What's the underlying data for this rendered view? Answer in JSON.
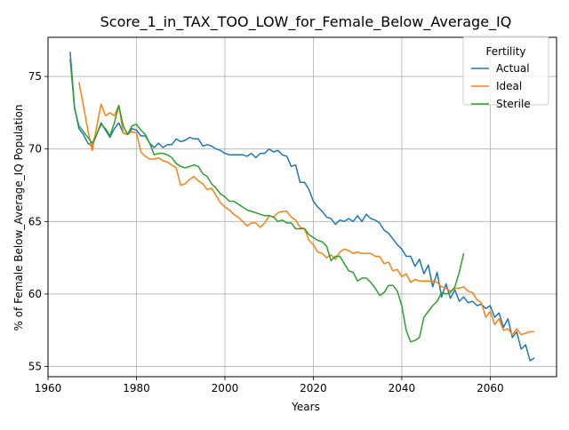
{
  "chart_data": {
    "type": "line",
    "title": "Score_1_in_TAX_TOO_LOW_for_Female_Below_Average_IQ",
    "xlabel": "Years",
    "ylabel": "% of Female Below_Average_IQ Population",
    "xlim": [
      1960,
      2075
    ],
    "ylim": [
      54.3,
      77.7
    ],
    "xticks": [
      1960,
      1980,
      2000,
      2020,
      2040,
      2060
    ],
    "yticks": [
      55,
      60,
      65,
      70,
      75
    ],
    "grid": true,
    "legend": {
      "title": "Fertility",
      "placement": "top-right"
    },
    "series": [
      {
        "name": "Actual",
        "color": "#1f77b4",
        "x": [
          1965,
          1966,
          1967,
          1968,
          1969,
          1970,
          1971,
          1972,
          1973,
          1974,
          1975,
          1976,
          1977,
          1978,
          1979,
          1980,
          1981,
          1982,
          1983,
          1984,
          1985,
          1986,
          1987,
          1988,
          1989,
          1990,
          1991,
          1992,
          1993,
          1994,
          1995,
          1996,
          1997,
          1998,
          1999,
          2000,
          2001,
          2002,
          2003,
          2004,
          2005,
          2006,
          2007,
          2008,
          2009,
          2010,
          2011,
          2012,
          2013,
          2014,
          2015,
          2016,
          2017,
          2018,
          2019,
          2020,
          2021,
          2022,
          2023,
          2024,
          2025,
          2026,
          2027,
          2028,
          2029,
          2030,
          2031,
          2032,
          2033,
          2034,
          2035,
          2036,
          2037,
          2038,
          2039,
          2040,
          2041,
          2042,
          2043,
          2044,
          2045,
          2046,
          2047,
          2048,
          2049,
          2050,
          2051,
          2052,
          2053,
          2054,
          2055,
          2056,
          2057,
          2058,
          2059,
          2060,
          2061,
          2062,
          2063,
          2064,
          2065,
          2066,
          2067,
          2068,
          2069,
          2070
        ],
        "values": [
          76.7,
          72.9,
          71.4,
          71.0,
          70.4,
          70.2,
          71.0,
          71.8,
          71.3,
          70.8,
          71.4,
          71.8,
          71.1,
          71.0,
          71.4,
          71.3,
          70.9,
          70.9,
          70.4,
          70.1,
          70.4,
          70.1,
          70.3,
          70.3,
          70.7,
          70.5,
          70.6,
          70.8,
          70.7,
          70.7,
          70.2,
          70.3,
          70.2,
          70.0,
          69.9,
          69.7,
          69.6,
          69.6,
          69.6,
          69.6,
          69.5,
          69.7,
          69.4,
          69.7,
          69.7,
          70.0,
          69.8,
          69.9,
          69.6,
          69.5,
          68.8,
          68.9,
          67.7,
          67.7,
          67.2,
          66.4,
          66.0,
          65.7,
          65.3,
          65.2,
          64.8,
          65.1,
          65.0,
          65.2,
          65.0,
          65.4,
          65.0,
          65.5,
          65.2,
          65.1,
          64.9,
          64.4,
          64.2,
          63.8,
          63.4,
          63.1,
          62.6,
          62.6,
          61.9,
          62.4,
          61.4,
          62.0,
          60.5,
          61.5,
          59.8,
          60.7,
          59.7,
          60.3,
          59.5,
          59.8,
          59.4,
          59.5,
          59.2,
          59.3,
          59.0,
          59.2,
          58.4,
          58.7,
          57.7,
          58.3,
          57.0,
          57.4,
          56.2,
          56.5,
          55.4,
          55.6
        ]
      },
      {
        "name": "Ideal",
        "color": "#ff7f0e",
        "x": [
          1967,
          1968,
          1969,
          1970,
          1971,
          1972,
          1973,
          1974,
          1975,
          1976,
          1977,
          1978,
          1979,
          1980,
          1981,
          1982,
          1983,
          1984,
          1985,
          1986,
          1987,
          1988,
          1989,
          1990,
          1991,
          1992,
          1993,
          1994,
          1995,
          1996,
          1997,
          1998,
          1999,
          2000,
          2001,
          2002,
          2003,
          2004,
          2005,
          2006,
          2007,
          2008,
          2009,
          2010,
          2011,
          2012,
          2013,
          2014,
          2015,
          2016,
          2017,
          2018,
          2019,
          2020,
          2021,
          2022,
          2023,
          2024,
          2025,
          2026,
          2027,
          2028,
          2029,
          2030,
          2031,
          2032,
          2033,
          2034,
          2035,
          2036,
          2037,
          2038,
          2039,
          2040,
          2041,
          2042,
          2043,
          2044,
          2045,
          2046,
          2047,
          2048,
          2049,
          2050,
          2051,
          2052,
          2053,
          2054,
          2055,
          2056,
          2057,
          2058,
          2059,
          2060,
          2061,
          2062,
          2063,
          2064,
          2065,
          2066,
          2067,
          2068,
          2069,
          2070
        ],
        "values": [
          74.6,
          73.0,
          71.3,
          69.9,
          71.5,
          73.1,
          72.3,
          72.5,
          72.3,
          73.0,
          71.1,
          71.0,
          71.2,
          71.1,
          69.8,
          69.5,
          69.3,
          69.3,
          69.4,
          69.2,
          69.1,
          68.9,
          68.7,
          67.5,
          67.6,
          67.9,
          68.1,
          67.8,
          67.6,
          67.2,
          67.3,
          66.8,
          66.3,
          66.0,
          65.8,
          65.5,
          65.3,
          65.0,
          64.7,
          64.9,
          64.9,
          64.6,
          64.9,
          65.4,
          65.3,
          65.6,
          65.7,
          65.7,
          65.3,
          65.1,
          64.6,
          64.5,
          63.7,
          63.4,
          62.9,
          62.8,
          62.5,
          62.7,
          62.4,
          62.9,
          63.1,
          63.0,
          62.8,
          62.9,
          62.8,
          62.8,
          62.8,
          62.6,
          62.6,
          62.1,
          62.2,
          61.6,
          61.7,
          61.2,
          61.4,
          60.8,
          61.0,
          60.9,
          60.9,
          60.9,
          60.9,
          60.8,
          60.5,
          60.4,
          60.2,
          60.4,
          60.4,
          60.5,
          60.2,
          60.1,
          59.6,
          59.4,
          58.4,
          58.8,
          57.9,
          58.3,
          57.5,
          57.6,
          57.2,
          57.6,
          57.2,
          57.3,
          57.4,
          57.4
        ]
      },
      {
        "name": "Sterile",
        "color": "#2ca02c",
        "x": [
          1965,
          1966,
          1967,
          1968,
          1969,
          1970,
          1971,
          1972,
          1973,
          1974,
          1975,
          1976,
          1977,
          1978,
          1979,
          1980,
          1981,
          1982,
          1983,
          1984,
          1985,
          1986,
          1987,
          1988,
          1989,
          1990,
          1991,
          1992,
          1993,
          1994,
          1995,
          1996,
          1997,
          1998,
          1999,
          2000,
          2001,
          2002,
          2003,
          2004,
          2005,
          2006,
          2007,
          2008,
          2009,
          2010,
          2011,
          2012,
          2013,
          2014,
          2015,
          2016,
          2017,
          2018,
          2019,
          2020,
          2021,
          2022,
          2023,
          2024,
          2025,
          2026,
          2027,
          2028,
          2029,
          2030,
          2031,
          2032,
          2033,
          2034,
          2035,
          2036,
          2037,
          2038,
          2039,
          2040,
          2041,
          2042,
          2043,
          2044,
          2045,
          2046,
          2047,
          2048,
          2049,
          2050,
          2051,
          2052,
          2053,
          2054
        ],
        "values": [
          76.2,
          72.8,
          71.6,
          71.2,
          70.8,
          70.4,
          71.0,
          71.7,
          71.4,
          70.9,
          71.8,
          73.0,
          71.6,
          71.0,
          71.6,
          71.7,
          71.3,
          71.0,
          70.4,
          69.6,
          69.7,
          69.7,
          69.6,
          69.4,
          69.0,
          68.8,
          68.7,
          68.8,
          68.9,
          68.8,
          68.3,
          68.1,
          67.6,
          67.3,
          66.9,
          66.7,
          66.4,
          66.4,
          66.2,
          66.0,
          65.8,
          65.7,
          65.6,
          65.5,
          65.4,
          65.4,
          65.3,
          65.0,
          65.1,
          64.9,
          64.9,
          64.5,
          64.5,
          64.5,
          64.1,
          63.9,
          63.7,
          63.6,
          63.3,
          62.3,
          62.6,
          62.6,
          62.1,
          61.6,
          61.5,
          60.9,
          61.1,
          61.1,
          60.8,
          60.4,
          59.9,
          60.1,
          60.6,
          60.6,
          60.2,
          59.2,
          57.5,
          56.7,
          56.8,
          57.0,
          58.4,
          58.8,
          59.2,
          59.5,
          60.1,
          60.0,
          60.1,
          60.5,
          61.5,
          62.8
        ]
      }
    ]
  }
}
